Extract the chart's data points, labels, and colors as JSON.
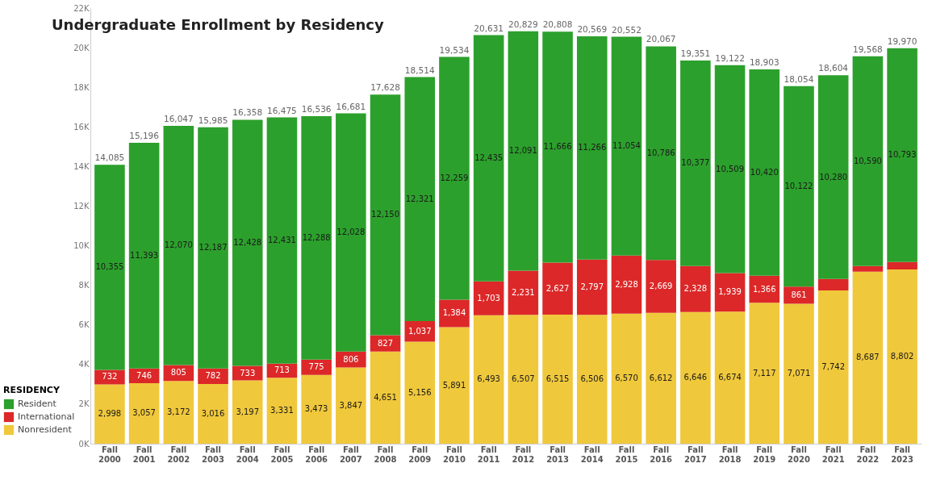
{
  "chart_data": {
    "type": "bar",
    "title": "Undergraduate Enrollment by Residency",
    "legend_title": "RESIDENCY",
    "stacked": true,
    "legend": "bottom left",
    "grid": false,
    "categories": [
      "Fall 2000",
      "Fall 2001",
      "Fall 2002",
      "Fall 2003",
      "Fall 2004",
      "Fall 2005",
      "Fall 2006",
      "Fall 2007",
      "Fall 2008",
      "Fall 2009",
      "Fall 2010",
      "Fall 2011",
      "Fall 2012",
      "Fall 2013",
      "Fall 2014",
      "Fall 2015",
      "Fall 2016",
      "Fall 2017",
      "Fall 2018",
      "Fall 2019",
      "Fall 2020",
      "Fall 2021",
      "Fall 2022",
      "Fall 2023"
    ],
    "series": [
      {
        "name": "Nonresident",
        "color": "#f0c83c",
        "values": [
          2998,
          3057,
          3172,
          3016,
          3197,
          3331,
          3473,
          3847,
          4651,
          5156,
          5891,
          6493,
          6507,
          6515,
          6506,
          6570,
          6612,
          6646,
          6674,
          7117,
          7071,
          7742,
          8687,
          8802
        ],
        "value_labels": [
          "2,998",
          "3,057",
          "3,172",
          "3,016",
          "3,197",
          "3,331",
          "3,473",
          "3,847",
          "4,651",
          "5,156",
          "5,891",
          "6,493",
          "6,507",
          "6,515",
          "6,506",
          "6,570",
          "6,612",
          "6,646",
          "6,674",
          "7,117",
          "7,071",
          "7,742",
          "8,687",
          "8,802"
        ]
      },
      {
        "name": "International",
        "color": "#dc2828",
        "values": [
          732,
          746,
          805,
          782,
          733,
          713,
          775,
          806,
          827,
          1037,
          1384,
          1703,
          2231,
          2627,
          2797,
          2928,
          2669,
          2328,
          1939,
          1366,
          861,
          582,
          291,
          375
        ],
        "value_labels": [
          "732",
          "746",
          "805",
          "782",
          "733",
          "713",
          "775",
          "806",
          "827",
          "1,037",
          "1,384",
          "1,703",
          "2,231",
          "2,627",
          "2,797",
          "2,928",
          "2,669",
          "2,328",
          "1,939",
          "1,366",
          "861",
          null,
          null,
          null
        ]
      },
      {
        "name": "Resident",
        "color": "#2ca02c",
        "values": [
          10355,
          11393,
          12070,
          12187,
          12428,
          12431,
          12288,
          12028,
          12150,
          12321,
          12259,
          12435,
          12091,
          11666,
          11266,
          11054,
          10786,
          10377,
          10509,
          10420,
          10122,
          10280,
          10590,
          10793
        ],
        "value_labels": [
          "10,355",
          "11,393",
          "12,070",
          "12,187",
          "12,428",
          "12,431",
          "12,288",
          "12,028",
          "12,150",
          "12,321",
          "12,259",
          "12,435",
          "12,091",
          "11,666",
          "11,266",
          "11,054",
          "10,786",
          "10,377",
          "10,509",
          "10,420",
          "10,122",
          "10,280",
          "10,590",
          "10,793"
        ]
      }
    ],
    "totals": [
      "14,085",
      "15,196",
      "16,047",
      "15,985",
      "16,358",
      "16,475",
      "16,536",
      "16,681",
      "17,628",
      "18,514",
      "19,534",
      "20,631",
      "20,829",
      "20,808",
      "20,569",
      "20,552",
      "20,067",
      "19,351",
      "19,122",
      "18,903",
      "18,054",
      "18,604",
      "19,568",
      "19,970"
    ],
    "ylim": [
      0,
      22000
    ],
    "yticks": [
      {
        "value": 0,
        "label": "0K"
      },
      {
        "value": 2000,
        "label": "2K"
      },
      {
        "value": 4000,
        "label": "4K"
      },
      {
        "value": 6000,
        "label": "6K"
      },
      {
        "value": 8000,
        "label": "8K"
      },
      {
        "value": 10000,
        "label": "10K"
      },
      {
        "value": 12000,
        "label": "12K"
      },
      {
        "value": 14000,
        "label": "14K"
      },
      {
        "value": 16000,
        "label": "16K"
      },
      {
        "value": 18000,
        "label": "18K"
      },
      {
        "value": 20000,
        "label": "20K"
      },
      {
        "value": 22000,
        "label": "22K"
      }
    ]
  }
}
